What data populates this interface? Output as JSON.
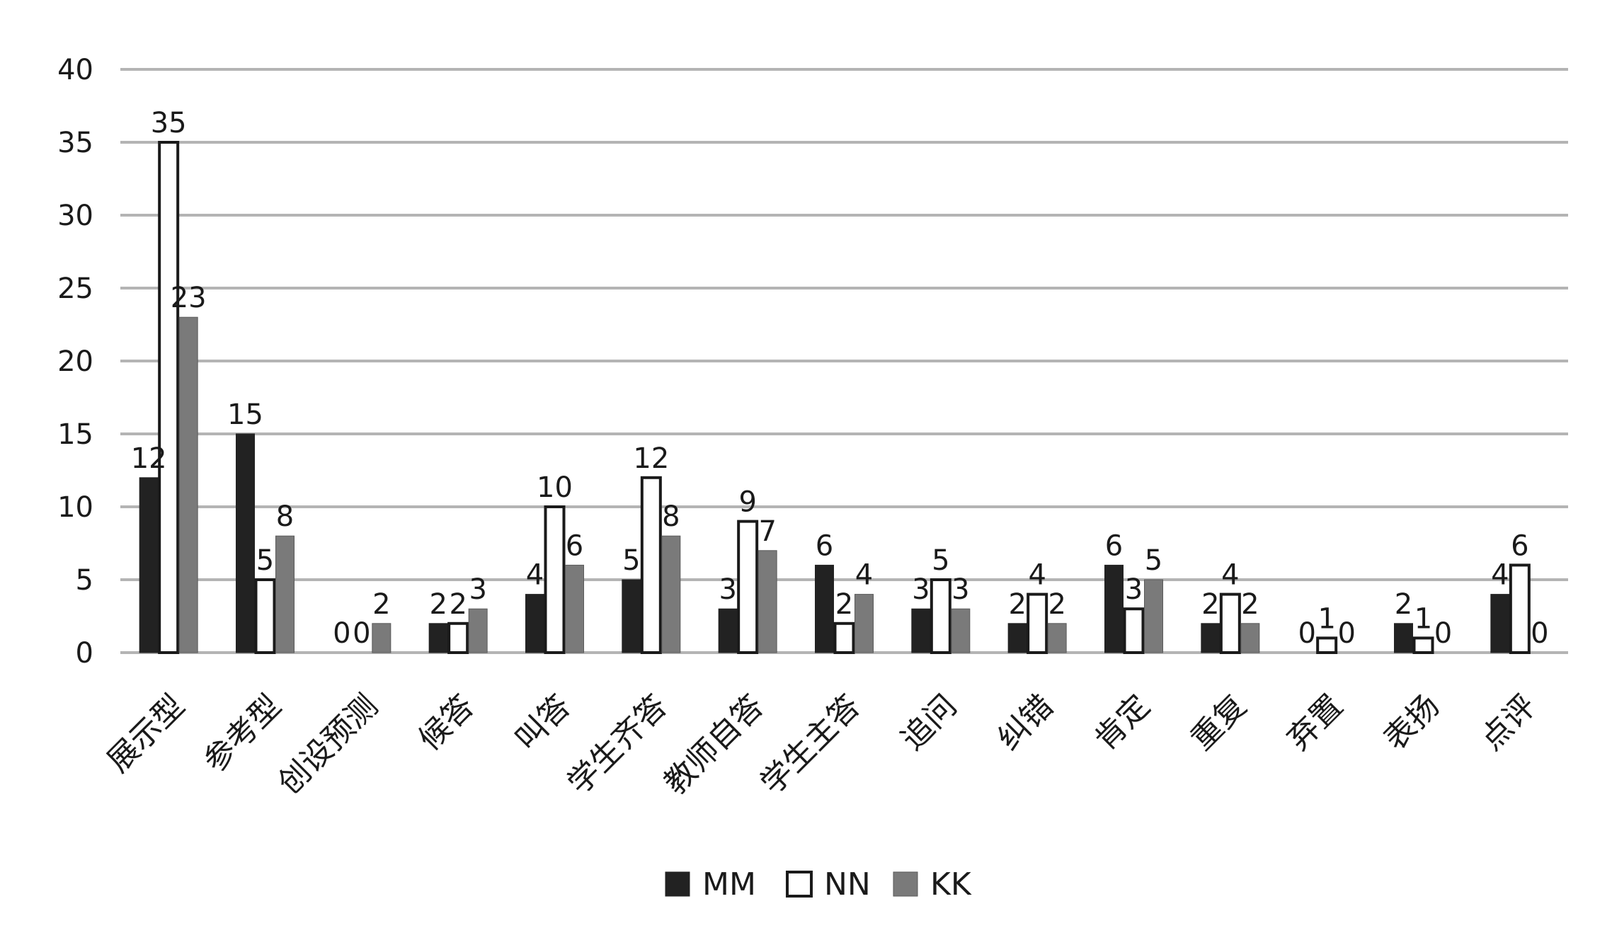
{
  "chart_data": {
    "type": "bar",
    "title": "",
    "xlabel": "",
    "ylabel": "",
    "ylim": [
      0,
      40
    ],
    "yticks": [
      0,
      5,
      10,
      15,
      20,
      25,
      30,
      35,
      40
    ],
    "grid": true,
    "legend_position": "bottom",
    "categories": [
      "展示型",
      "参考型",
      "创设预测",
      "候答",
      "叫答",
      "学生齐答",
      "教师自答",
      "学生主答",
      "追问",
      "纠错",
      "肯定",
      "重复",
      "弃置",
      "表扬",
      "点评"
    ],
    "series": [
      {
        "name": "MM",
        "color": "#222222",
        "values": [
          12,
          15,
          0,
          2,
          4,
          5,
          3,
          6,
          3,
          2,
          6,
          2,
          0,
          2,
          4
        ]
      },
      {
        "name": "NN",
        "color": "#ffffff",
        "values": [
          35,
          5,
          0,
          2,
          10,
          12,
          9,
          2,
          5,
          4,
          3,
          4,
          1,
          1,
          6
        ]
      },
      {
        "name": "KK",
        "color": "#7a7a7a",
        "values": [
          23,
          8,
          2,
          3,
          6,
          8,
          7,
          4,
          3,
          2,
          5,
          2,
          0,
          0,
          0
        ]
      }
    ]
  }
}
